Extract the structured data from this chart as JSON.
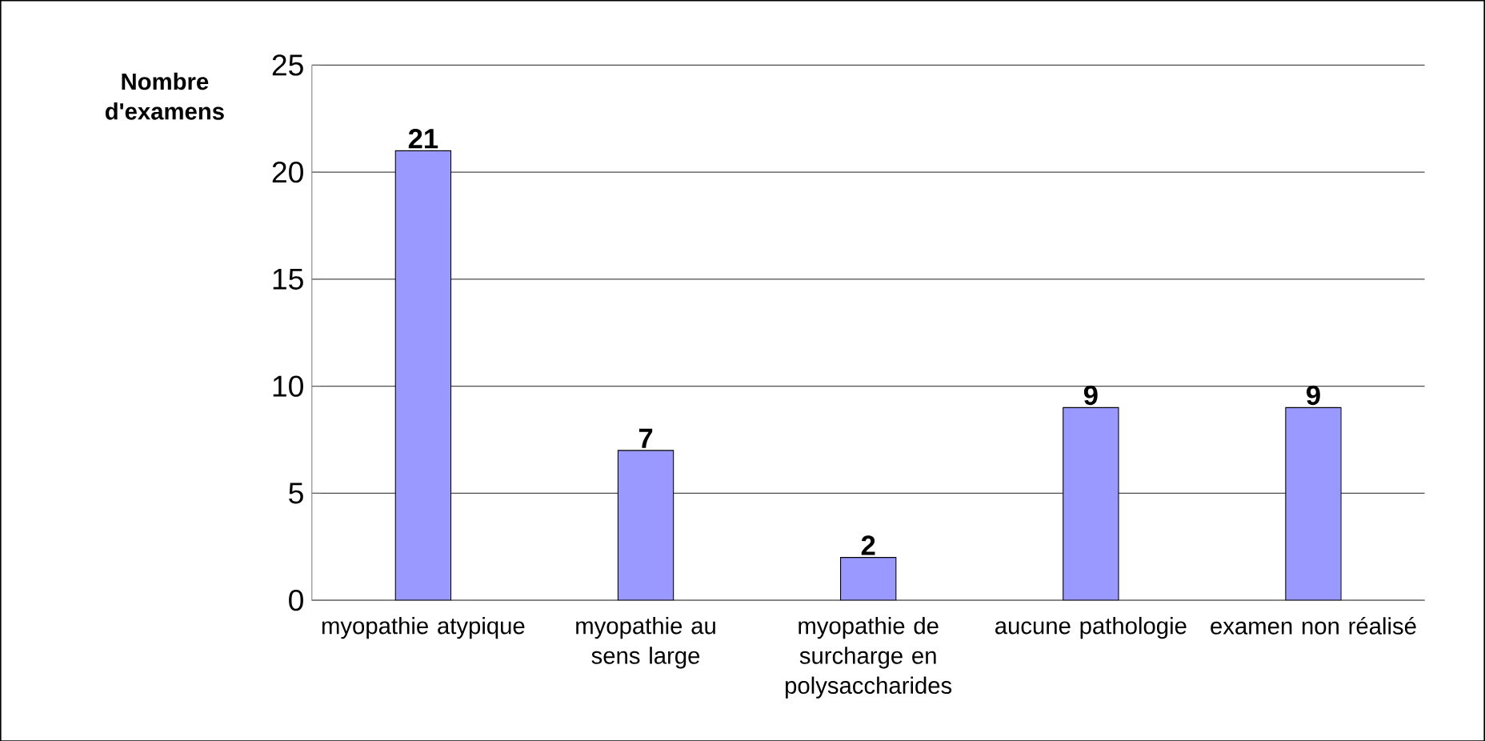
{
  "chart_data": {
    "type": "bar",
    "ylabel": "Nombre d'examens",
    "categories": [
      "myopathie atypique",
      "myopathie au sens large",
      "myopathie de surcharge en polysaccharides",
      "aucune pathologie",
      "examen non réalisé"
    ],
    "values": [
      21,
      7,
      2,
      9,
      9
    ],
    "color": "#9999ff",
    "ylim": [
      0,
      25
    ],
    "yticks": [
      0,
      5,
      10,
      15,
      20,
      25
    ],
    "grid": "y",
    "data_labels": true
  }
}
